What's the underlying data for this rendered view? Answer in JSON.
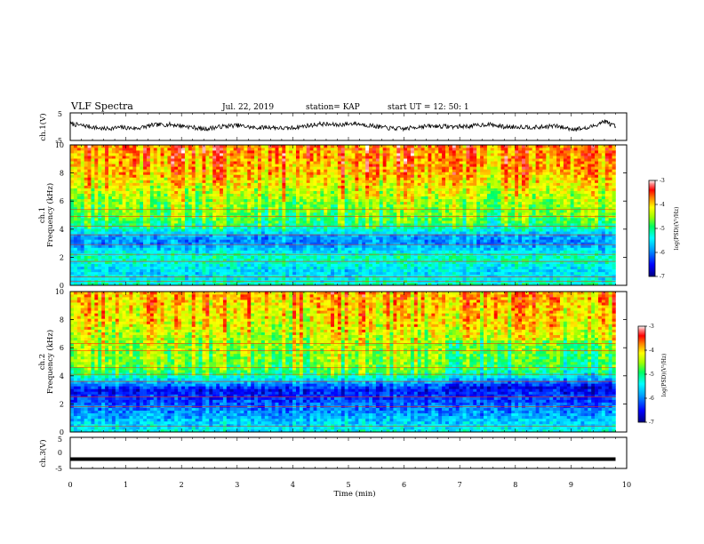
{
  "header": {
    "title": "VLF Spectra",
    "date": "Jul. 22, 2019",
    "station": "station= KAP",
    "start": "start UT =  12: 50: 1"
  },
  "chart_data": [
    {
      "type": "line",
      "name": "channel-1-waveform",
      "ylabel": "ch.1(V)",
      "ylim": [
        -5,
        5
      ],
      "yticks": [
        "5",
        "-5"
      ],
      "xlim": [
        0,
        10
      ],
      "x": [
        0,
        0.3,
        0.6,
        0.9,
        1.2,
        1.5,
        1.8,
        2.1,
        2.4,
        2.7,
        3.0,
        3.3,
        3.6,
        3.9,
        4.2,
        4.5,
        4.8,
        5.1,
        5.4,
        5.7,
        6.0,
        6.3,
        6.6,
        6.9,
        7.2,
        7.5,
        7.8,
        8.1,
        8.4,
        8.7,
        9.0,
        9.3,
        9.6,
        9.8
      ],
      "y": [
        1.0,
        0.2,
        -0.8,
        -0.3,
        -0.6,
        0.6,
        0.8,
        0.1,
        -0.9,
        0.0,
        0.5,
        -0.4,
        -0.2,
        -0.7,
        0.2,
        1.0,
        0.6,
        1.2,
        0.4,
        -0.5,
        -0.8,
        0.1,
        0.2,
        0.0,
        0.2,
        0.9,
        -0.1,
        0.0,
        -0.3,
        0.3,
        -0.8,
        -0.6,
        2.0,
        0.0
      ]
    },
    {
      "type": "heatmap",
      "name": "ch1-spectrogram",
      "ylabel": "ch.1\nFrequency (kHz)",
      "ylim": [
        0,
        10
      ],
      "yticks": [
        "0",
        "2",
        "4",
        "6",
        "8",
        "10"
      ],
      "xlim": [
        0,
        10
      ],
      "data_end_min": 9.8,
      "colorbar": {
        "min": -7,
        "max": -3,
        "ticks": [
          "-3",
          "-4",
          "-5",
          "-6",
          "-7"
        ],
        "label": "log(PSD)(V²/Hz)"
      },
      "log_psd_profile": [
        {
          "f": 0.0,
          "v": -5.2
        },
        {
          "f": 0.5,
          "v": -5.5
        },
        {
          "f": 1.0,
          "v": -5.6
        },
        {
          "f": 1.5,
          "v": -5.4
        },
        {
          "f": 2.0,
          "v": -5.2
        },
        {
          "f": 2.5,
          "v": -5.6
        },
        {
          "f": 3.0,
          "v": -6.0
        },
        {
          "f": 3.5,
          "v": -5.9
        },
        {
          "f": 4.0,
          "v": -5.3
        },
        {
          "f": 4.5,
          "v": -5.0
        },
        {
          "f": 5.0,
          "v": -4.8
        },
        {
          "f": 6.0,
          "v": -4.6
        },
        {
          "f": 7.0,
          "v": -4.3
        },
        {
          "f": 8.0,
          "v": -4.0
        },
        {
          "f": 9.0,
          "v": -3.9
        },
        {
          "f": 10.0,
          "v": -3.8
        }
      ],
      "lines_khz": [
        0.3,
        0.6,
        1.7,
        2.2,
        2.9,
        3.6,
        4.2,
        4.9,
        5.4
      ]
    },
    {
      "type": "heatmap",
      "name": "ch2-spectrogram",
      "ylabel": "ch.2\nFrequency (kHz)",
      "ylim": [
        0,
        10
      ],
      "yticks": [
        "0",
        "2",
        "4",
        "6",
        "8",
        "10"
      ],
      "xlim": [
        0,
        10
      ],
      "data_end_min": 9.8,
      "colorbar": {
        "min": -7,
        "max": -3,
        "ticks": [
          "-3",
          "-4",
          "-5",
          "-6",
          "-7"
        ],
        "label": "log(PSD)(V²/Hz)"
      },
      "log_psd_profile": [
        {
          "f": 0.0,
          "v": -5.4
        },
        {
          "f": 0.5,
          "v": -5.6
        },
        {
          "f": 1.0,
          "v": -5.8
        },
        {
          "f": 1.5,
          "v": -6.0
        },
        {
          "f": 2.0,
          "v": -6.2
        },
        {
          "f": 2.5,
          "v": -6.4
        },
        {
          "f": 3.0,
          "v": -6.5
        },
        {
          "f": 3.5,
          "v": -5.9
        },
        {
          "f": 4.0,
          "v": -5.2
        },
        {
          "f": 4.5,
          "v": -4.8
        },
        {
          "f": 5.0,
          "v": -4.7
        },
        {
          "f": 6.0,
          "v": -4.6
        },
        {
          "f": 7.0,
          "v": -4.4
        },
        {
          "f": 8.0,
          "v": -4.2
        },
        {
          "f": 9.0,
          "v": -4.1
        },
        {
          "f": 10.0,
          "v": -4.0
        }
      ],
      "lines_khz": [
        0.4,
        1.8,
        2.5,
        3.6,
        4.1,
        4.6,
        5.8,
        6.3
      ]
    },
    {
      "type": "line",
      "name": "channel-3-waveform",
      "ylabel": "ch.3(V)",
      "ylim": [
        -5,
        5
      ],
      "yticks": [
        "5",
        "0",
        "-5"
      ],
      "xlim": [
        0,
        10
      ],
      "x": [
        0,
        9.8
      ],
      "y": [
        -2,
        -2
      ],
      "xlabel": "Time (min)",
      "xticks": [
        "0",
        "1",
        "2",
        "3",
        "4",
        "5",
        "6",
        "7",
        "8",
        "9",
        "10"
      ]
    }
  ],
  "colors": {
    "trace": "#000000",
    "frame": "#000000",
    "background": "#ffffff",
    "scale": [
      "#000080",
      "#0000ff",
      "#00a0ff",
      "#00ffff",
      "#00ff80",
      "#80ff00",
      "#ffff00",
      "#ff8000",
      "#ff0000",
      "#ff6060",
      "#ffffff"
    ]
  }
}
